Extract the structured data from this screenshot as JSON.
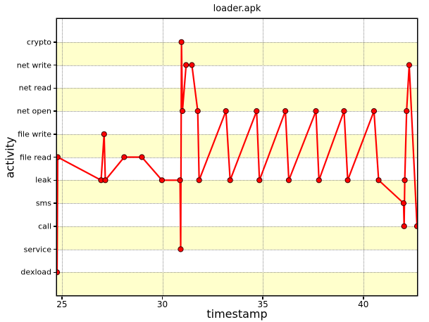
{
  "chart_data": {
    "type": "line",
    "title": "loader.apk",
    "xlabel": "timestamp",
    "ylabel": "activity",
    "y_categories": [
      "dexload",
      "service",
      "call",
      "sms",
      "leak",
      "file read",
      "file write",
      "net open",
      "net read",
      "net write",
      "crypto"
    ],
    "x_ticks": [
      "25",
      "30",
      "35",
      "40"
    ],
    "x_tick_values": [
      25,
      30,
      35,
      40
    ],
    "xlim": [
      24.76,
      42.67
    ],
    "ylim": [
      -1,
      11
    ],
    "grid": "dotted",
    "legend": "none",
    "band_color": "#ffffcc",
    "line_color": "#ff0000",
    "marker": "o",
    "marker_edge_color": "#3a0000",
    "events": [
      [
        24.76,
        "dexload"
      ],
      [
        24.79,
        "file read"
      ],
      [
        26.95,
        "leak"
      ],
      [
        27.1,
        "file write"
      ],
      [
        27.16,
        "leak"
      ],
      [
        28.1,
        "file read"
      ],
      [
        28.98,
        "file read"
      ],
      [
        29.98,
        "leak"
      ],
      [
        30.88,
        "leak"
      ],
      [
        30.91,
        "service"
      ],
      [
        30.95,
        "crypto"
      ],
      [
        31.0,
        "net open"
      ],
      [
        31.18,
        "net write"
      ],
      [
        31.47,
        "net write"
      ],
      [
        31.76,
        "net open"
      ],
      [
        31.83,
        "leak"
      ],
      [
        33.16,
        "net open"
      ],
      [
        33.37,
        "leak"
      ],
      [
        34.69,
        "net open"
      ],
      [
        34.83,
        "leak"
      ],
      [
        36.12,
        "net open"
      ],
      [
        36.29,
        "leak"
      ],
      [
        37.64,
        "net open"
      ],
      [
        37.79,
        "leak"
      ],
      [
        39.04,
        "net open"
      ],
      [
        39.22,
        "leak"
      ],
      [
        40.53,
        "net open"
      ],
      [
        40.76,
        "leak"
      ],
      [
        42.0,
        "sms"
      ],
      [
        42.03,
        "call"
      ],
      [
        42.06,
        "leak"
      ],
      [
        42.15,
        "net open"
      ],
      [
        42.28,
        "net write"
      ],
      [
        42.67,
        "call"
      ]
    ]
  }
}
